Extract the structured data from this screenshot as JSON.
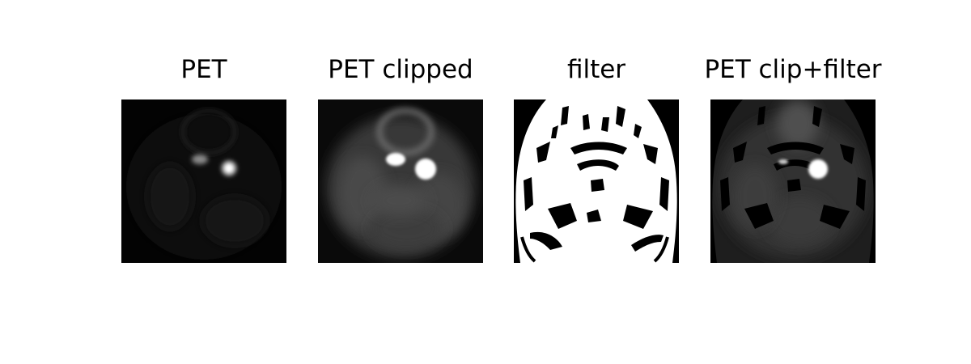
{
  "figure": {
    "panels": [
      {
        "title": "PET",
        "image": "pet-scan-image"
      },
      {
        "title": "PET clipped",
        "image": "pet-clipped-image"
      },
      {
        "title": "filter",
        "image": "binary-filter-mask-image"
      },
      {
        "title": "PET clip+filter",
        "image": "pet-clip-filter-image"
      }
    ]
  }
}
